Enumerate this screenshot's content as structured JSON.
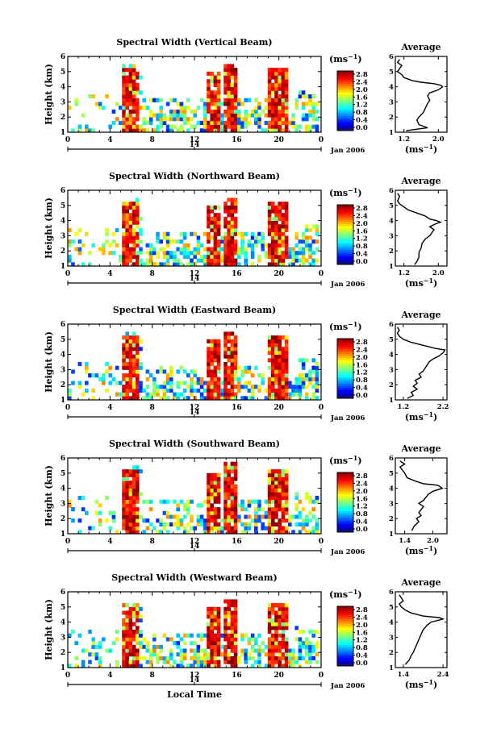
{
  "chart_data": [
    {
      "type": "heatmap",
      "title": "Spectral Width (Vertical Beam)",
      "ylabel": "Height (km)",
      "xticks": [
        "0",
        "4",
        "8",
        "12",
        "16",
        "20",
        "0"
      ],
      "day_label": "14",
      "month_label": "Jan 2006",
      "xlabel": "",
      "ylim": [
        1,
        6
      ],
      "yticks": [
        "1",
        "2",
        "3",
        "4",
        "5",
        "6"
      ],
      "colorbar": {
        "unit": "(ms",
        "unit_exp": "−1",
        "unit_close": ")",
        "ticks": [
          "0.0",
          "0.4",
          "0.8",
          "1.2",
          "1.6",
          "2.0",
          "2.4",
          "2.8"
        ]
      },
      "average": {
        "title": "Average",
        "xticks": [
          "1.2",
          "2.0"
        ],
        "xlim": [
          1.0,
          2.2
        ],
        "xlabel": "(ms",
        "xlabel_exp": "−1",
        "xlabel_close": ")",
        "heights": [
          1.1,
          1.3,
          1.5,
          1.8,
          2.0,
          2.3,
          2.6,
          2.9,
          3.1,
          3.4,
          3.6,
          3.8,
          4.0,
          4.1,
          4.2,
          4.3,
          4.4,
          4.6,
          4.8,
          5.0,
          5.2,
          5.4,
          5.6,
          5.8
        ],
        "values": [
          1.25,
          1.75,
          1.55,
          1.5,
          1.55,
          1.65,
          1.7,
          1.75,
          1.8,
          1.75,
          1.8,
          2.0,
          2.1,
          2.05,
          1.9,
          1.6,
          1.4,
          1.2,
          1.15,
          1.05,
          1.1,
          1.15,
          1.05,
          1.1
        ]
      }
    },
    {
      "type": "heatmap",
      "title": "Spectral Width (Northward Beam)",
      "ylabel": "Height (km)",
      "xticks": [
        "0",
        "4",
        "8",
        "12",
        "16",
        "20",
        "0"
      ],
      "day_label": "14",
      "month_label": "Jan 2006",
      "xlabel": "",
      "ylim": [
        1,
        6
      ],
      "yticks": [
        "1",
        "2",
        "3",
        "4",
        "5",
        "6"
      ],
      "colorbar": {
        "unit": "(ms",
        "unit_exp": "−1",
        "unit_close": ")",
        "ticks": [
          "0.0",
          "0.4",
          "0.8",
          "1.2",
          "1.6",
          "2.0",
          "2.4",
          "2.8"
        ]
      },
      "average": {
        "title": "Average",
        "xticks": [
          "1.2",
          "2.0"
        ],
        "xlim": [
          1.0,
          2.2
        ],
        "xlabel": "(ms",
        "xlabel_exp": "−1",
        "xlabel_close": ")",
        "heights": [
          1.1,
          1.3,
          1.6,
          1.9,
          2.2,
          2.5,
          2.8,
          3.0,
          3.2,
          3.4,
          3.6,
          3.8,
          3.9,
          4.0,
          4.1,
          4.3,
          4.5,
          4.7,
          4.9,
          5.1,
          5.3,
          5.6,
          5.8
        ],
        "values": [
          1.45,
          1.5,
          1.55,
          1.55,
          1.6,
          1.62,
          1.7,
          1.8,
          1.85,
          1.9,
          1.8,
          1.95,
          2.05,
          1.95,
          1.8,
          1.7,
          1.5,
          1.3,
          1.2,
          1.1,
          1.05,
          1.1,
          1.05
        ]
      }
    },
    {
      "type": "heatmap",
      "title": "Spectral Width (Eastward Beam)",
      "ylabel": "Height (km)",
      "xticks": [
        "0",
        "4",
        "8",
        "12",
        "16",
        "20",
        "0"
      ],
      "day_label": "14",
      "month_label": "Jan 2006",
      "xlabel": "",
      "ylim": [
        1,
        6
      ],
      "yticks": [
        "1",
        "2",
        "3",
        "4",
        "5",
        "6"
      ],
      "colorbar": {
        "unit": "(ms",
        "unit_exp": "−1",
        "unit_close": ")",
        "ticks": [
          "0.0",
          "0.4",
          "0.8",
          "1.2",
          "1.6",
          "2.0",
          "2.4",
          "2.8"
        ]
      },
      "average": {
        "title": "Average",
        "xticks": [
          "1.2",
          "2.2"
        ],
        "xlim": [
          1.0,
          2.3
        ],
        "xlabel": "(ms",
        "xlabel_exp": "−1",
        "xlabel_close": ")",
        "heights": [
          1.1,
          1.3,
          1.5,
          1.7,
          1.9,
          2.1,
          2.3,
          2.5,
          2.7,
          2.9,
          3.1,
          3.3,
          3.5,
          3.7,
          3.9,
          4.1,
          4.3,
          4.4,
          4.6,
          4.8,
          5.0,
          5.2,
          5.4,
          5.6,
          5.8
        ],
        "values": [
          1.3,
          1.45,
          1.4,
          1.55,
          1.45,
          1.55,
          1.5,
          1.65,
          1.6,
          1.7,
          1.75,
          1.8,
          1.85,
          1.95,
          2.1,
          2.2,
          2.25,
          2.0,
          1.7,
          1.4,
          1.2,
          1.1,
          1.05,
          1.1,
          1.05
        ]
      }
    },
    {
      "type": "heatmap",
      "title": "Spectral Width (Southward Beam)",
      "ylabel": "Height (km)",
      "xticks": [
        "0",
        "4",
        "8",
        "12",
        "16",
        "20",
        "0"
      ],
      "day_label": "14",
      "month_label": "Jan 2006",
      "xlabel": "",
      "ylim": [
        1,
        6
      ],
      "yticks": [
        "1",
        "2",
        "3",
        "4",
        "5",
        "6"
      ],
      "colorbar": {
        "unit": "(ms",
        "unit_exp": "−1",
        "unit_close": ")",
        "ticks": [
          "0.0",
          "0.4",
          "0.8",
          "1.2",
          "1.6",
          "2.0",
          "2.4",
          "2.8"
        ]
      },
      "average": {
        "title": "Average",
        "xticks": [
          "1.4",
          "2.0"
        ],
        "xlim": [
          1.2,
          2.3
        ],
        "xlabel": "(ms",
        "xlabel_exp": "−1",
        "xlabel_close": ")",
        "heights": [
          1.2,
          1.5,
          1.8,
          2.0,
          2.2,
          2.4,
          2.6,
          2.8,
          3.0,
          3.2,
          3.4,
          3.6,
          3.8,
          4.0,
          4.2,
          4.3,
          4.5,
          4.7,
          5.0,
          5.2,
          5.4,
          5.6,
          5.8
        ],
        "values": [
          1.55,
          1.6,
          1.7,
          1.65,
          1.75,
          1.7,
          1.75,
          1.8,
          1.7,
          1.8,
          1.85,
          1.9,
          2.0,
          2.2,
          2.1,
          1.8,
          1.6,
          1.45,
          1.4,
          1.35,
          1.3,
          1.4,
          1.3
        ]
      }
    },
    {
      "type": "heatmap",
      "title": "Spectral Width (Westward Beam)",
      "ylabel": "Height (km)",
      "xticks": [
        "0",
        "4",
        "8",
        "12",
        "16",
        "20",
        "0"
      ],
      "day_label": "14",
      "month_label": "Jan 2006",
      "xlabel": "Local Time",
      "ylim": [
        1,
        6
      ],
      "yticks": [
        "1",
        "2",
        "3",
        "4",
        "5",
        "6"
      ],
      "colorbar": {
        "unit": "(ms",
        "unit_exp": "−1",
        "unit_close": ")",
        "ticks": [
          "0.0",
          "0.4",
          "0.8",
          "1.2",
          "1.6",
          "2.0",
          "2.4",
          "2.8"
        ]
      },
      "average": {
        "title": "Average",
        "xticks": [
          "1.4",
          "2.4"
        ],
        "xlim": [
          1.2,
          2.5
        ],
        "xlabel": "(ms",
        "xlabel_exp": "−1",
        "xlabel_close": ")",
        "heights": [
          1.2,
          1.5,
          1.8,
          2.0,
          2.3,
          2.6,
          2.9,
          3.2,
          3.5,
          3.8,
          4.0,
          4.2,
          4.3,
          4.4,
          4.6,
          4.8,
          5.0,
          5.2,
          5.4,
          5.6,
          5.8
        ],
        "values": [
          1.45,
          1.55,
          1.6,
          1.65,
          1.7,
          1.75,
          1.8,
          1.85,
          1.9,
          2.0,
          2.1,
          2.4,
          2.3,
          1.9,
          1.6,
          1.45,
          1.35,
          1.3,
          1.4,
          1.35,
          1.3
        ]
      }
    }
  ]
}
